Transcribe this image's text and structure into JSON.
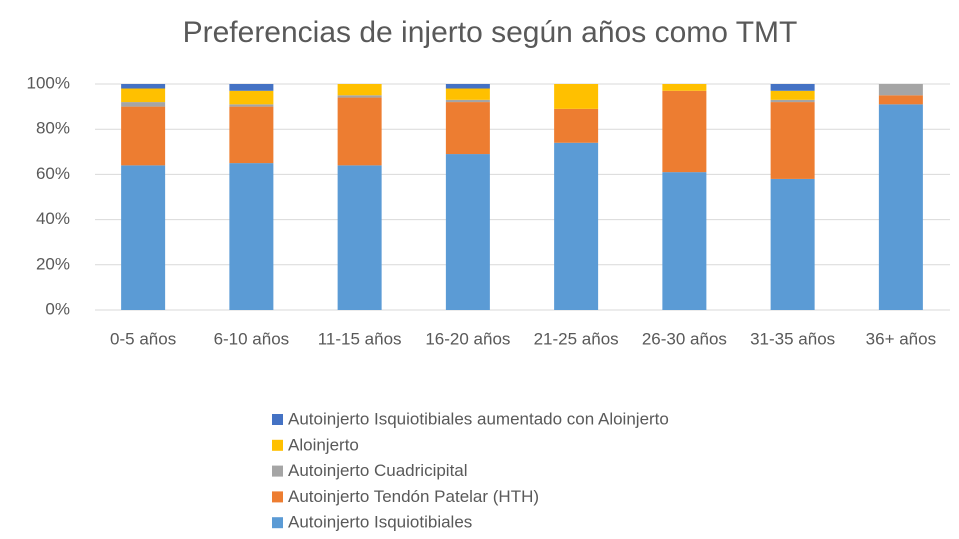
{
  "chart_data": {
    "type": "stacked_bar",
    "title": "Preferencias de injerto según años como TMT",
    "categories": [
      "0-5 años",
      "6-10 años",
      "11-15 años",
      "16-20 años",
      "21-25 años",
      "26-30 años",
      "31-35 años",
      "36+ años"
    ],
    "series": [
      {
        "name": "Autoinjerto Isquiotibiales",
        "color": "#5b9bd5",
        "values": [
          64,
          65,
          64,
          69,
          74,
          61,
          58,
          91
        ]
      },
      {
        "name": "Autoinjerto Tendón Patelar (HTH)",
        "color": "#ed7d31",
        "values": [
          26,
          25,
          30,
          23,
          15,
          36,
          34,
          4
        ]
      },
      {
        "name": "Autoinjerto Cuadricipital",
        "color": "#a5a5a5",
        "values": [
          2,
          1,
          1,
          1,
          0,
          0,
          1,
          5
        ]
      },
      {
        "name": "Aloinjerto",
        "color": "#ffc000",
        "values": [
          6,
          6,
          5,
          5,
          11,
          3,
          4,
          0
        ]
      },
      {
        "name": "Autoinjerto Isquiotibiales aumentado con Aloinjerto",
        "color": "#4472c4",
        "values": [
          2,
          3,
          0,
          2,
          0,
          0,
          3,
          0
        ]
      }
    ],
    "ylim": [
      0,
      100
    ],
    "yticks": [
      {
        "value": 0,
        "label": "0%"
      },
      {
        "value": 20,
        "label": "20%"
      },
      {
        "value": 40,
        "label": "40%"
      },
      {
        "value": 60,
        "label": "60%"
      },
      {
        "value": 80,
        "label": "80%"
      },
      {
        "value": 100,
        "label": "100%"
      }
    ],
    "grid": true
  }
}
